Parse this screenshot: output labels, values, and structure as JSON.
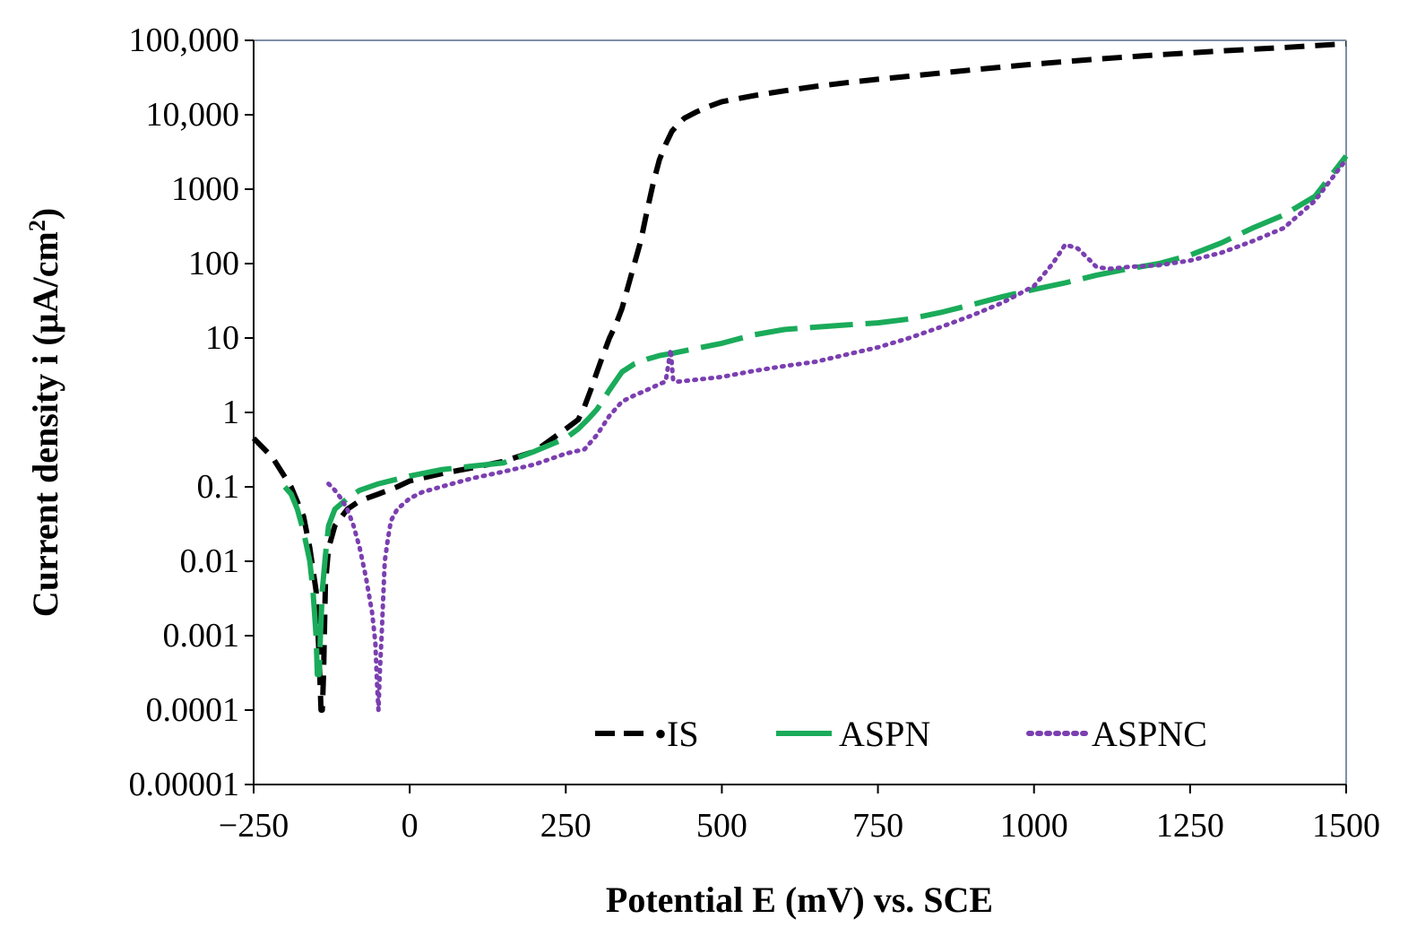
{
  "chart_data": {
    "type": "line",
    "title": "",
    "xlabel": "Potential E (mV) vs. SCE",
    "ylabel_main": "Current density i (µA/cm",
    "ylabel_sup": "2",
    "ylabel_end": ")",
    "xlim": [
      -250,
      1500
    ],
    "ylim": [
      1e-05,
      100000
    ],
    "yscale": "log",
    "grid": false,
    "legend_position": "bottom-right",
    "x_ticks": [
      -250,
      0,
      250,
      500,
      750,
      1000,
      1250,
      1500
    ],
    "x_tick_labels": [
      "−250",
      "0",
      "250",
      "500",
      "750",
      "1000",
      "1250",
      "1500"
    ],
    "y_ticks": [
      1e-05,
      0.0001,
      0.001,
      0.01,
      0.1,
      1,
      10,
      100,
      1000,
      10000,
      100000
    ],
    "y_tick_labels": [
      "0.00001",
      "0.0001",
      "0.001",
      "0.01",
      "0.1",
      "1",
      "10",
      "100",
      "1000",
      "10,000",
      "100,000"
    ],
    "series": [
      {
        "name": "IS",
        "legend_label": "•IS",
        "color": "#000000",
        "style": "dashed",
        "x": [
          -250,
          -220,
          -190,
          -170,
          -160,
          -150,
          -145,
          -142,
          -140,
          -138,
          -135,
          -130,
          -120,
          -100,
          -80,
          -50,
          -20,
          0,
          50,
          100,
          150,
          200,
          250,
          270,
          280,
          290,
          300,
          310,
          320,
          330,
          340,
          350,
          360,
          370,
          380,
          390,
          400,
          410,
          420,
          430,
          440,
          460,
          480,
          500,
          550,
          600,
          650,
          700,
          750,
          800,
          900,
          1000,
          1100,
          1200,
          1300,
          1400,
          1500
        ],
        "y": [
          0.45,
          0.25,
          0.1,
          0.04,
          0.015,
          0.004,
          0.0005,
          0.0001,
          0.0001,
          0.0003,
          0.005,
          0.015,
          0.03,
          0.05,
          0.065,
          0.08,
          0.1,
          0.12,
          0.15,
          0.18,
          0.22,
          0.3,
          0.6,
          0.8,
          1.2,
          2.0,
          3.5,
          6,
          10,
          15,
          25,
          50,
          100,
          200,
          500,
          1200,
          2500,
          4000,
          6000,
          7500,
          9000,
          11000,
          13000,
          15000,
          18000,
          21000,
          24000,
          27000,
          30000,
          33000,
          40000,
          48000,
          56000,
          64000,
          72000,
          80000,
          90000
        ]
      },
      {
        "name": "ASPN",
        "legend_label": "ASPN",
        "color": "#1aab5a",
        "style": "long-dash",
        "x": [
          -200,
          -190,
          -180,
          -170,
          -160,
          -155,
          -150,
          -148,
          -145,
          -143,
          -140,
          -135,
          -130,
          -120,
          -100,
          -80,
          -50,
          0,
          50,
          100,
          150,
          200,
          250,
          270,
          285,
          300,
          320,
          340,
          360,
          380,
          400,
          420,
          450,
          500,
          550,
          600,
          650,
          700,
          750,
          800,
          850,
          900,
          950,
          1000,
          1050,
          1100,
          1150,
          1200,
          1250,
          1300,
          1350,
          1400,
          1450,
          1500
        ],
        "y": [
          0.1,
          0.08,
          0.05,
          0.025,
          0.01,
          0.004,
          0.001,
          0.0003,
          0.0003,
          0.001,
          0.004,
          0.012,
          0.03,
          0.05,
          0.07,
          0.09,
          0.11,
          0.14,
          0.17,
          0.19,
          0.21,
          0.3,
          0.45,
          0.6,
          0.8,
          1.1,
          2.0,
          3.5,
          4.5,
          5.2,
          5.8,
          6.2,
          7,
          8.5,
          11,
          13,
          14,
          15,
          16,
          18,
          22,
          28,
          36,
          45,
          55,
          70,
          85,
          100,
          130,
          190,
          300,
          450,
          800,
          2800
        ]
      },
      {
        "name": "ASPNC",
        "legend_label": "ASPNC",
        "color": "#7b3fb0",
        "style": "dotted",
        "x": [
          -130,
          -120,
          -110,
          -100,
          -90,
          -80,
          -70,
          -60,
          -55,
          -52,
          -50,
          -48,
          -45,
          -42,
          -40,
          -35,
          -30,
          -20,
          0,
          20,
          50,
          100,
          150,
          200,
          250,
          280,
          300,
          320,
          340,
          360,
          380,
          400,
          410,
          418,
          422,
          430,
          450,
          500,
          550,
          600,
          650,
          700,
          750,
          800,
          850,
          900,
          950,
          1000,
          1030,
          1050,
          1070,
          1090,
          1100,
          1120,
          1150,
          1200,
          1250,
          1300,
          1350,
          1400,
          1450,
          1500
        ],
        "y": [
          0.11,
          0.09,
          0.07,
          0.05,
          0.03,
          0.015,
          0.006,
          0.002,
          0.0008,
          0.0002,
          0.0001,
          0.0003,
          0.001,
          0.004,
          0.01,
          0.02,
          0.035,
          0.05,
          0.07,
          0.085,
          0.1,
          0.13,
          0.16,
          0.2,
          0.28,
          0.32,
          0.5,
          0.9,
          1.4,
          1.7,
          2.0,
          2.4,
          2.6,
          7,
          2.7,
          2.6,
          2.7,
          3,
          3.6,
          4.2,
          4.8,
          6,
          7.5,
          10,
          14,
          20,
          30,
          50,
          100,
          180,
          160,
          110,
          90,
          85,
          90,
          95,
          110,
          140,
          200,
          300,
          700,
          2500
        ]
      }
    ]
  }
}
